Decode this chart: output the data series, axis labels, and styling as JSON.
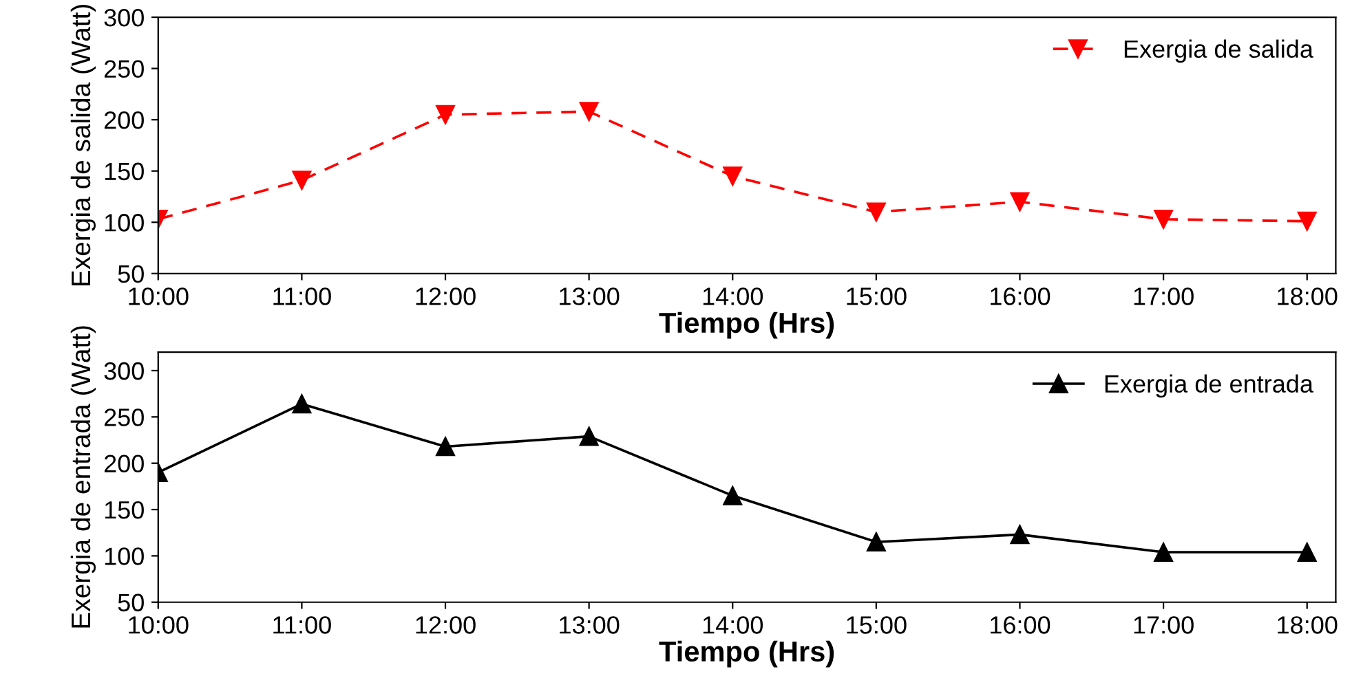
{
  "chart_data": [
    {
      "type": "line",
      "x": [
        10,
        11,
        12,
        13,
        14,
        15,
        16,
        17,
        18
      ],
      "xlim": [
        10,
        18.2
      ],
      "xticks": [
        {
          "value": 10,
          "label": "10:00"
        },
        {
          "value": 11,
          "label": "11:00"
        },
        {
          "value": 12,
          "label": "12:00"
        },
        {
          "value": 13,
          "label": "13:00"
        },
        {
          "value": 14,
          "label": "14:00"
        },
        {
          "value": 15,
          "label": "15:00"
        },
        {
          "value": 16,
          "label": "16:00"
        },
        {
          "value": 17,
          "label": "17:00"
        },
        {
          "value": 18,
          "label": "18:00"
        }
      ],
      "ylim": [
        50,
        300
      ],
      "yticks": [
        50,
        100,
        150,
        200,
        250,
        300
      ],
      "xlabel": "Tiempo (Hrs)",
      "ylabel": "Exergia de salida (Watt)",
      "legend": "top right",
      "grid": false,
      "marker": "triangle_down",
      "line_style": "dashed",
      "series": [
        {
          "name": "Exergia de salida",
          "color": "#ff0000",
          "values": [
            103,
            141,
            205,
            208,
            145,
            110,
            120,
            103,
            101
          ]
        }
      ]
    },
    {
      "type": "line",
      "x": [
        10,
        11,
        12,
        13,
        14,
        15,
        16,
        17,
        18
      ],
      "xlim": [
        10,
        18.2
      ],
      "xticks": [
        {
          "value": 10,
          "label": "10:00"
        },
        {
          "value": 11,
          "label": "11:00"
        },
        {
          "value": 12,
          "label": "12:00"
        },
        {
          "value": 13,
          "label": "13:00"
        },
        {
          "value": 14,
          "label": "14:00"
        },
        {
          "value": 15,
          "label": "15:00"
        },
        {
          "value": 16,
          "label": "16:00"
        },
        {
          "value": 17,
          "label": "17:00"
        },
        {
          "value": 18,
          "label": "18:00"
        }
      ],
      "ylim": [
        50,
        320
      ],
      "yticks": [
        50,
        100,
        150,
        200,
        250,
        300
      ],
      "xlabel": "Tiempo (Hrs)",
      "ylabel": "Exergia de entrada (Watt)",
      "legend": "top right",
      "grid": false,
      "marker": "triangle",
      "line_style": "solid",
      "series": [
        {
          "name": "Exergia de entrada",
          "color": "#000000",
          "values": [
            190,
            264,
            218,
            229,
            165,
            115,
            123,
            104,
            104
          ]
        }
      ]
    }
  ]
}
